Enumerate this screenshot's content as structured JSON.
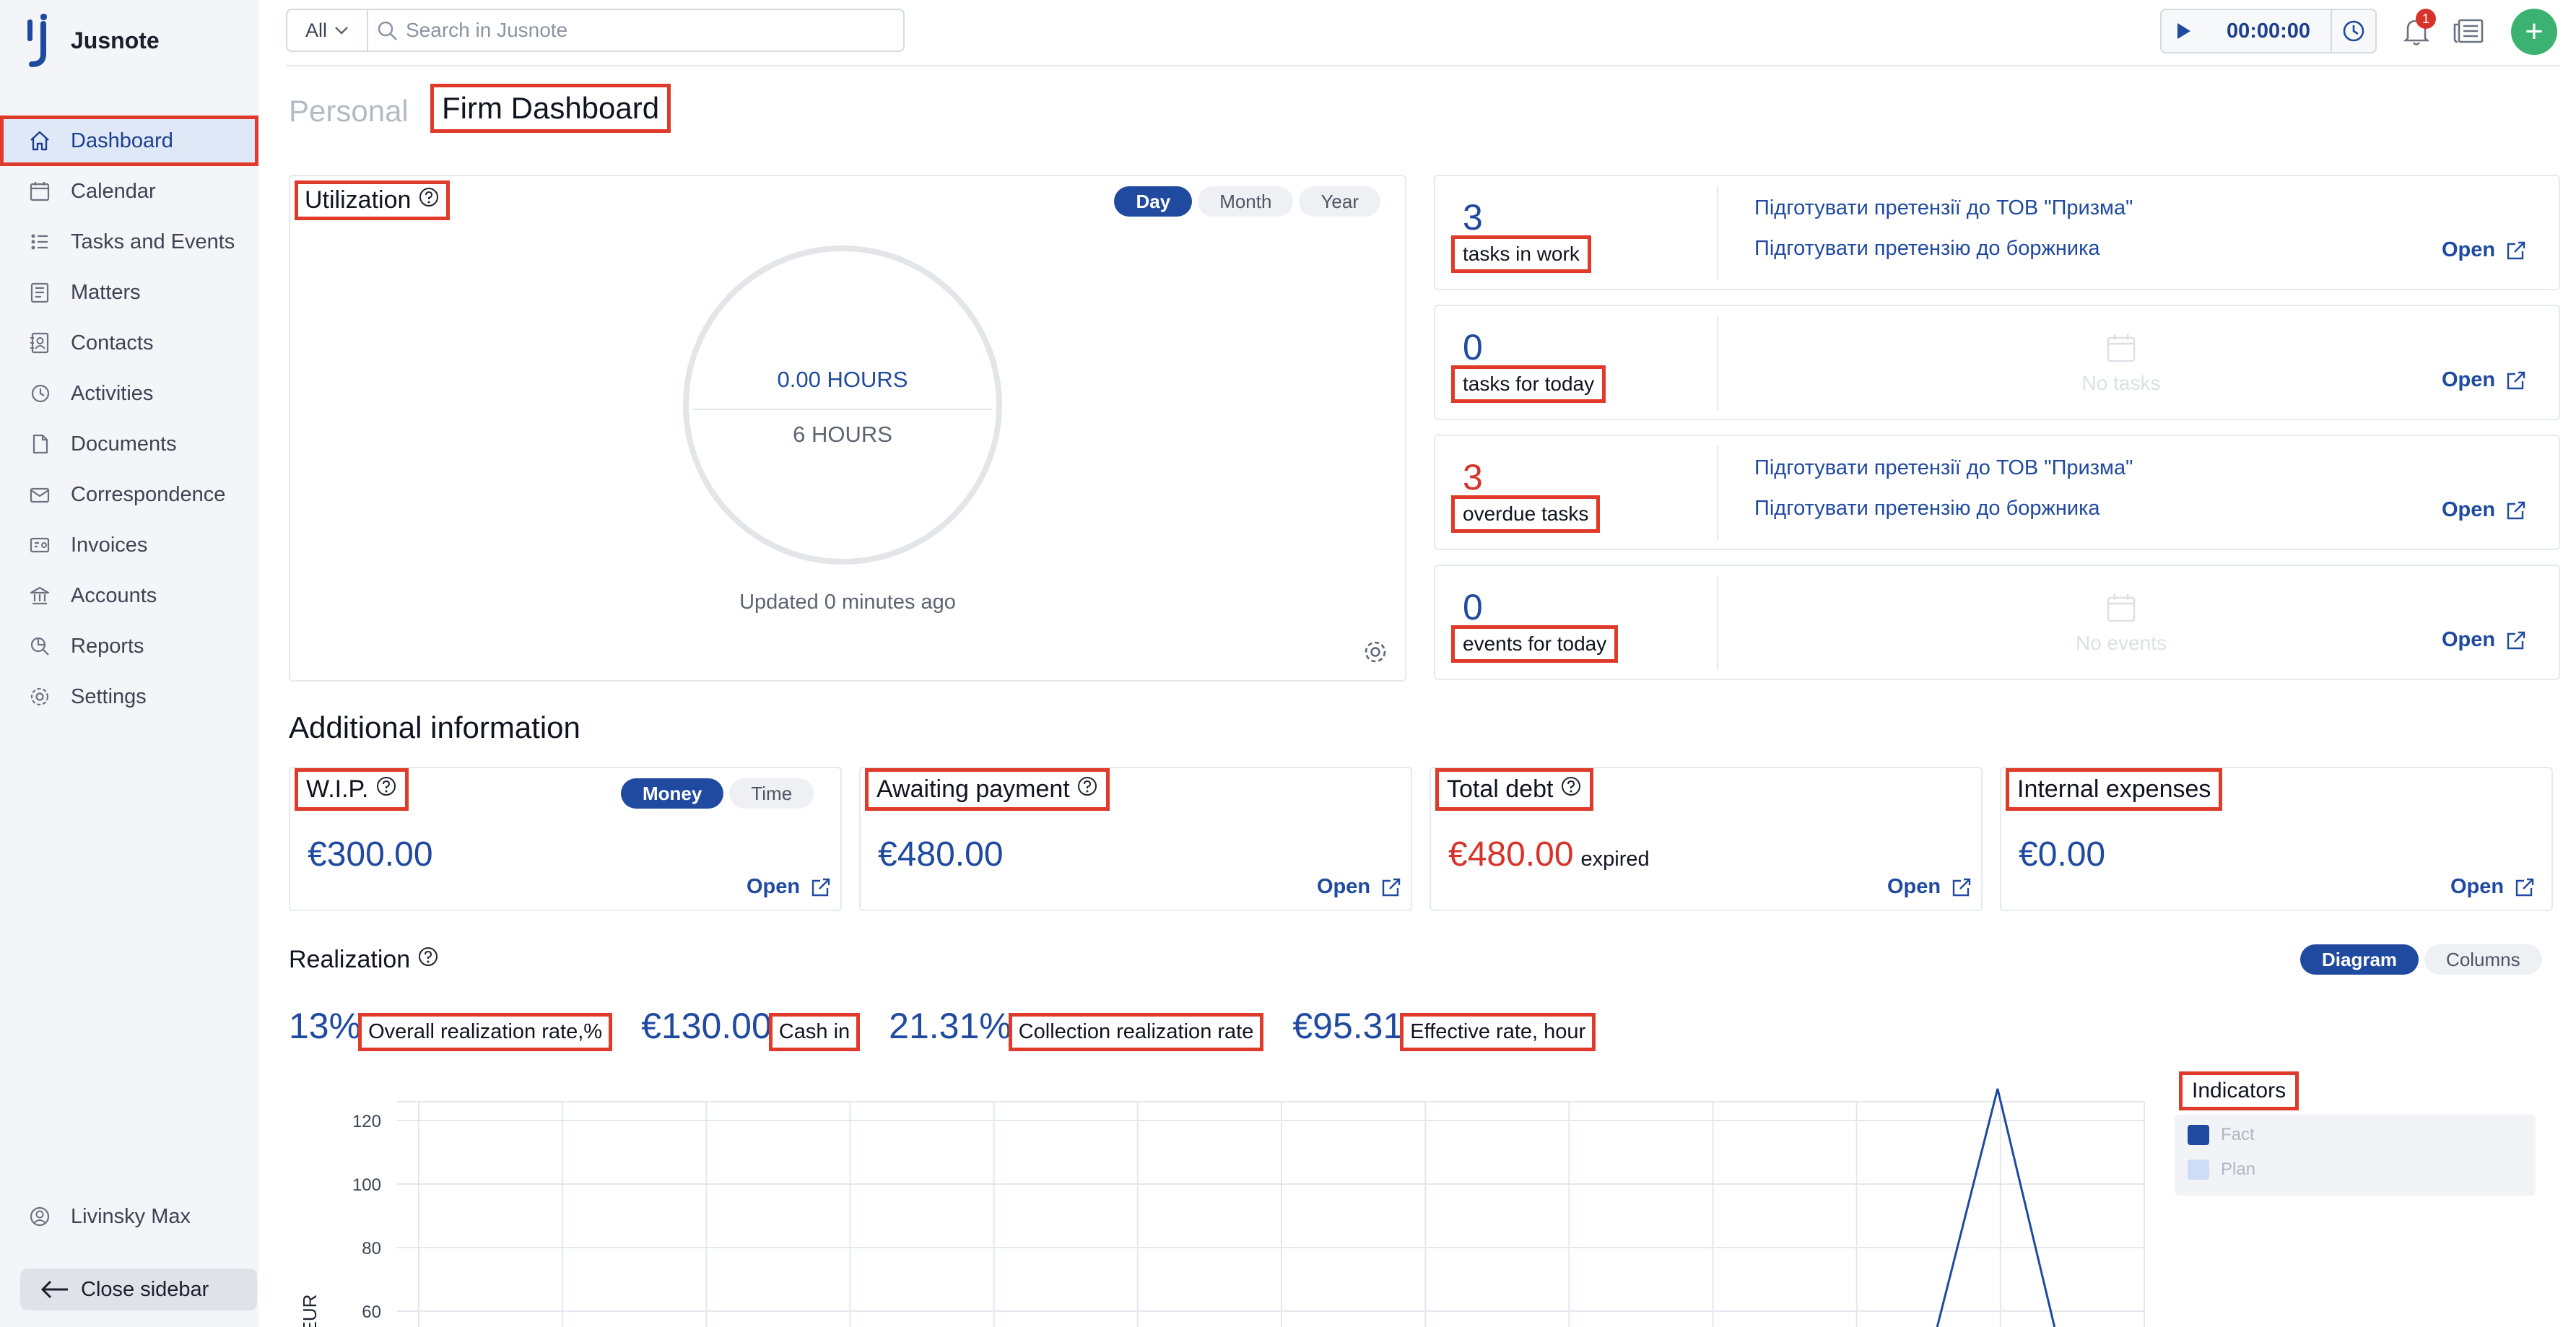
{
  "app": {
    "name": "Jusnote"
  },
  "sidebar": {
    "items": [
      {
        "label": "Dashboard",
        "icon": "home-icon"
      },
      {
        "label": "Calendar",
        "icon": "calendar-icon"
      },
      {
        "label": "Tasks and Events",
        "icon": "tasks-icon"
      },
      {
        "label": "Matters",
        "icon": "briefcase-icon"
      },
      {
        "label": "Contacts",
        "icon": "contacts-icon"
      },
      {
        "label": "Activities",
        "icon": "activities-icon"
      },
      {
        "label": "Documents",
        "icon": "documents-icon"
      },
      {
        "label": "Correspondence",
        "icon": "correspondence-icon"
      },
      {
        "label": "Invoices",
        "icon": "invoices-icon"
      },
      {
        "label": "Accounts",
        "icon": "accounts-icon"
      },
      {
        "label": "Reports",
        "icon": "reports-icon"
      },
      {
        "label": "Settings",
        "icon": "settings-icon"
      }
    ],
    "user": "Livinsky Max",
    "close_label": "Close sidebar"
  },
  "topbar": {
    "search_scope": "All",
    "search_placeholder": "Search in Jusnote",
    "timer": "00:00:00",
    "notifications_count": "1",
    "add_label": "+"
  },
  "tabs": {
    "personal": "Personal",
    "firm": "Firm Dashboard"
  },
  "utilization": {
    "title": "Utilization",
    "periods": [
      "Day",
      "Month",
      "Year"
    ],
    "active_period": "Day",
    "hours_tracked": "0.00 HOURS",
    "hours_target": "6 HOURS",
    "updated": "Updated 0 minutes ago"
  },
  "tasks": [
    {
      "count": "3",
      "label": "tasks in work",
      "color": "#1f4aa0",
      "items": [
        "Підготувати претензії до ТОВ \"Призма\"",
        "Підготувати претензію до боржника"
      ],
      "empty": "",
      "open": "Open"
    },
    {
      "count": "0",
      "label": "tasks for today",
      "color": "#1f4aa0",
      "items": [],
      "empty": "No tasks",
      "open": "Open"
    },
    {
      "count": "3",
      "label": "overdue tasks",
      "color": "#d6342a",
      "items": [
        "Підготувати претензії до ТОВ \"Призма\"",
        "Підготувати претензію до боржника"
      ],
      "empty": "",
      "open": "Open"
    },
    {
      "count": "0",
      "label": "events for today",
      "color": "#1f4aa0",
      "items": [],
      "empty": "No events",
      "open": "Open"
    }
  ],
  "additional": {
    "title": "Additional information",
    "wip": {
      "title": "W.I.P.",
      "toggle": [
        "Money",
        "Time"
      ],
      "amount": "€300.00",
      "open": "Open"
    },
    "awaiting": {
      "title": "Awaiting payment",
      "amount": "€480.00",
      "open": "Open"
    },
    "debt": {
      "title": "Total debt",
      "amount": "€480.00",
      "note": "expired",
      "open": "Open"
    },
    "internal": {
      "title": "Internal expenses",
      "amount": "€0.00",
      "open": "Open"
    }
  },
  "realization": {
    "title": "Realization",
    "views": [
      "Diagram",
      "Columns"
    ],
    "metrics": [
      {
        "value": "13%",
        "label": "Overall realization rate,%"
      },
      {
        "value": "€130.00",
        "label": "Cash in"
      },
      {
        "value": "21.31%",
        "label": "Collection realization rate"
      },
      {
        "value": "€95.31",
        "label": "Effective rate, hour"
      }
    ],
    "legend_title": "Indicators",
    "legend": [
      {
        "name": "Fact",
        "color": "#1f4aa0"
      },
      {
        "name": "Plan",
        "color": "#cfdcf5"
      }
    ]
  },
  "chart_data": {
    "type": "line",
    "ylabel": "EUR",
    "y_ticks": [
      120,
      100,
      80,
      60
    ],
    "ylim": [
      55,
      130
    ],
    "series": [
      {
        "name": "Fact",
        "points": [
          [
            0.88,
            55
          ],
          [
            0.915,
            130
          ],
          [
            0.948,
            55
          ]
        ]
      }
    ]
  }
}
